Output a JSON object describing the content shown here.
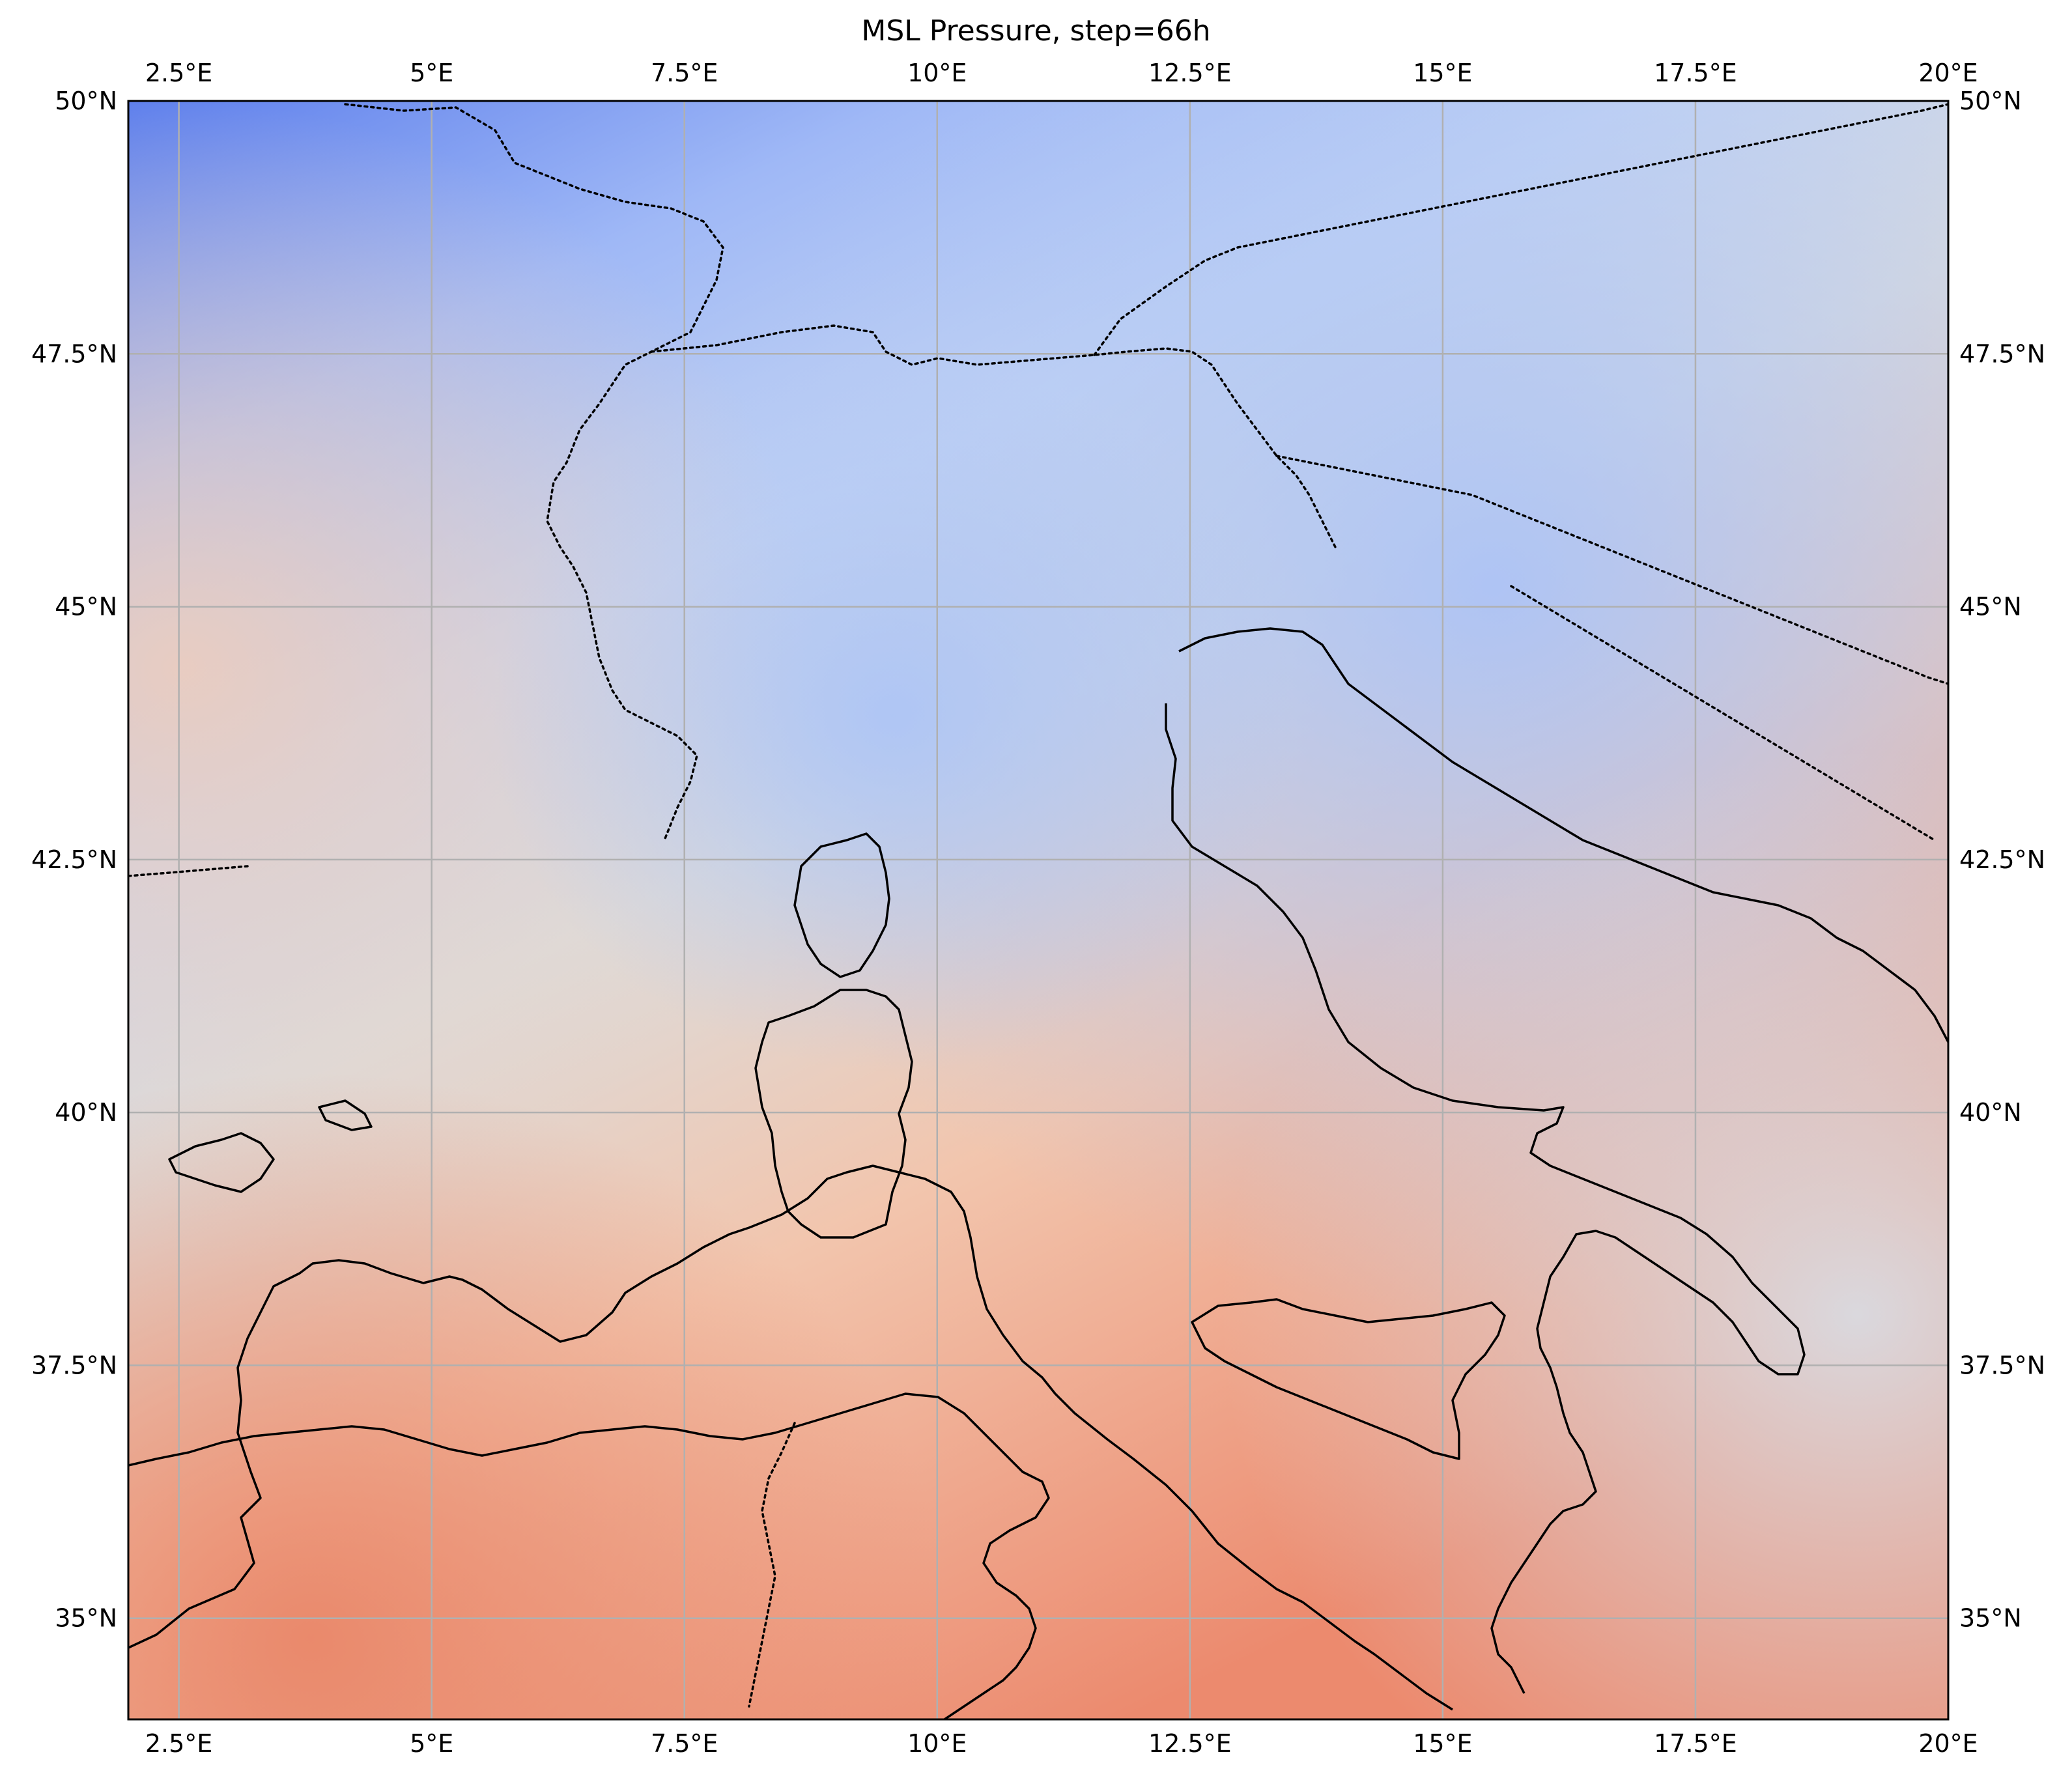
{
  "title": "MSL Pressure, step=66h",
  "map": {
    "projection": "PlateCarree",
    "extent_lon": [
      2.0,
      20.0
    ],
    "extent_lat": [
      34.0,
      50.0
    ],
    "colormap": "coolwarm",
    "gridlines": true,
    "features": [
      "coastlines",
      "country-borders-dotted"
    ],
    "lon_ticks": [
      {
        "value": 2.5,
        "label": "2.5°E"
      },
      {
        "value": 5,
        "label": "5°E"
      },
      {
        "value": 7.5,
        "label": "7.5°E"
      },
      {
        "value": 10,
        "label": "10°E"
      },
      {
        "value": 12.5,
        "label": "12.5°E"
      },
      {
        "value": 15,
        "label": "15°E"
      },
      {
        "value": 17.5,
        "label": "17.5°E"
      },
      {
        "value": 20,
        "label": "20°E"
      }
    ],
    "lat_ticks": [
      {
        "value": 50,
        "label": "50°N"
      },
      {
        "value": 47.5,
        "label": "47.5°N"
      },
      {
        "value": 45,
        "label": "45°N"
      },
      {
        "value": 42.5,
        "label": "42.5°N"
      },
      {
        "value": 40,
        "label": "40°N"
      },
      {
        "value": 37.5,
        "label": "37.5°N"
      },
      {
        "value": 35,
        "label": "35°N"
      }
    ],
    "colors": {
      "low": "#6a8bef",
      "mid_low": "#b9cff7",
      "neutral": "#dcdcdc",
      "mid_high": "#f4c2a8",
      "high": "#ec8a6e",
      "grid": "#b0b0b0",
      "coast": "#000000"
    }
  }
}
